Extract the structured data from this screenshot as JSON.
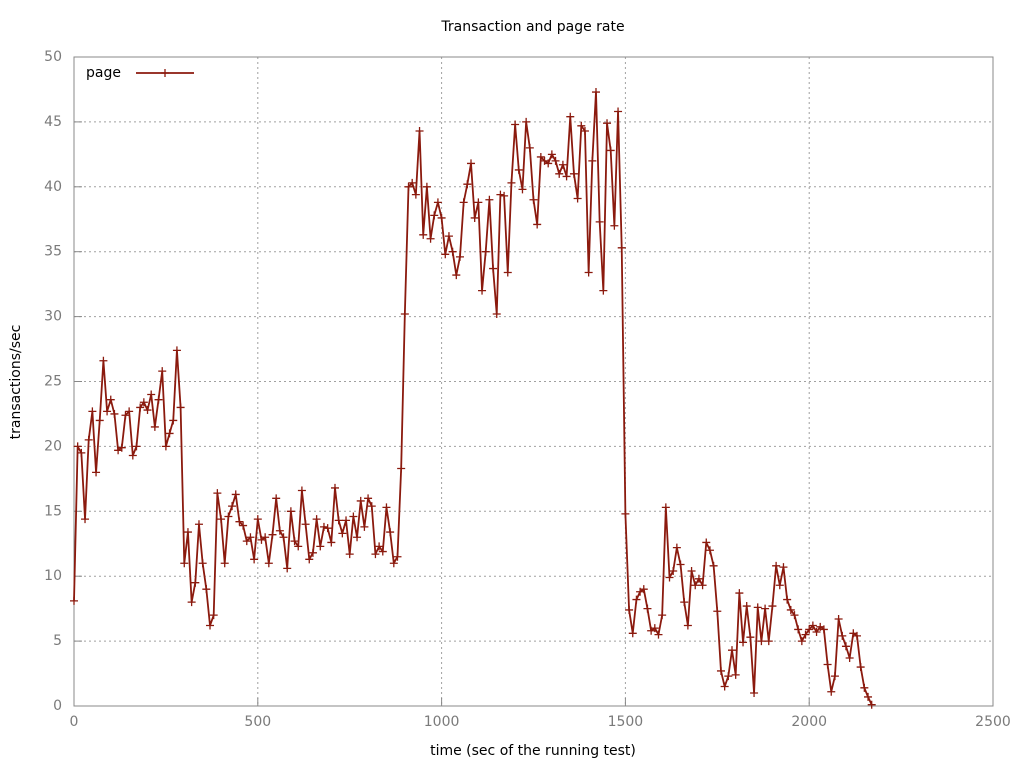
{
  "chart_data": {
    "type": "line",
    "title": "Transaction and page rate",
    "x_label": "time (sec of the running test)",
    "y_label": "transactions/sec",
    "x": [
      0,
      10,
      20,
      30,
      40,
      50,
      60,
      70,
      80,
      90,
      100,
      110,
      120,
      130,
      140,
      150,
      160,
      170,
      180,
      190,
      200,
      210,
      220,
      230,
      240,
      250,
      260,
      270,
      280,
      290,
      300,
      310,
      320,
      330,
      340,
      350,
      360,
      370,
      380,
      390,
      400,
      410,
      420,
      430,
      440,
      450,
      460,
      470,
      480,
      490,
      500,
      510,
      520,
      530,
      540,
      550,
      560,
      570,
      580,
      590,
      600,
      610,
      620,
      630,
      640,
      650,
      660,
      670,
      680,
      690,
      700,
      710,
      720,
      730,
      740,
      750,
      760,
      770,
      780,
      790,
      800,
      810,
      820,
      830,
      840,
      850,
      860,
      870,
      880,
      890,
      900,
      910,
      920,
      930,
      940,
      950,
      960,
      970,
      980,
      990,
      1000,
      1010,
      1020,
      1030,
      1040,
      1050,
      1060,
      1070,
      1080,
      1090,
      1100,
      1110,
      1120,
      1130,
      1140,
      1150,
      1160,
      1170,
      1180,
      1190,
      1200,
      1210,
      1220,
      1230,
      1240,
      1250,
      1260,
      1270,
      1280,
      1290,
      1300,
      1310,
      1320,
      1330,
      1340,
      1350,
      1360,
      1370,
      1380,
      1390,
      1400,
      1410,
      1420,
      1430,
      1440,
      1450,
      1460,
      1470,
      1480,
      1490,
      1500,
      1510,
      1520,
      1530,
      1540,
      1550,
      1560,
      1570,
      1580,
      1590,
      1600,
      1610,
      1620,
      1630,
      1640,
      1650,
      1660,
      1670,
      1680,
      1690,
      1700,
      1710,
      1720,
      1730,
      1740,
      1750,
      1760,
      1770,
      1780,
      1790,
      1800,
      1810,
      1820,
      1830,
      1840,
      1850,
      1860,
      1870,
      1880,
      1890,
      1900,
      1910,
      1920,
      1930,
      1940,
      1950,
      1960,
      1970,
      1980,
      1990,
      2000,
      2010,
      2020,
      2030,
      2040,
      2050,
      2060,
      2070,
      2080,
      2090,
      2100,
      2110,
      2120,
      2130,
      2140,
      2150,
      2160,
      2170
    ],
    "series": [
      {
        "name": "page",
        "color": "#8b1a0e",
        "values": [
          8.1,
          20,
          19.5,
          14.4,
          20.5,
          22.7,
          18,
          22,
          26.6,
          22.7,
          23.6,
          22.5,
          19.7,
          19.9,
          22.4,
          22.7,
          19.3,
          20,
          23,
          23.4,
          22.8,
          24,
          21.5,
          23.6,
          25.8,
          20,
          21,
          22,
          27.4,
          23,
          11,
          13.4,
          8,
          9.5,
          14,
          11,
          9,
          6.2,
          7,
          16.4,
          14.4,
          11,
          14.6,
          15.4,
          16.3,
          14.2,
          13.9,
          12.7,
          13,
          11.3,
          14.4,
          12.8,
          13,
          11,
          13.2,
          16,
          13.5,
          13,
          10.6,
          15,
          12.7,
          12.3,
          16.6,
          14,
          11.3,
          11.8,
          14.4,
          12.3,
          13.8,
          13.7,
          12.6,
          16.8,
          14.3,
          13.3,
          14.3,
          11.7,
          14.6,
          13,
          15.8,
          13.8,
          16,
          15.4,
          11.7,
          12.3,
          11.9,
          15.3,
          13.4,
          11,
          11.5,
          18.3,
          30.2,
          40,
          40.3,
          39.4,
          44.3,
          36.3,
          40,
          36,
          37.8,
          38.8,
          37.6,
          34.8,
          36.2,
          35,
          33.2,
          34.6,
          38.8,
          40.2,
          41.8,
          37.6,
          38.8,
          32,
          35,
          39,
          33.7,
          30.2,
          39.4,
          39.3,
          33.4,
          40.3,
          44.8,
          41.3,
          39.8,
          45,
          43,
          39,
          37.1,
          42.3,
          42,
          41.8,
          42.5,
          42,
          41,
          41.7,
          40.8,
          45.4,
          41,
          39.1,
          44.7,
          44.3,
          33.4,
          42,
          47.3,
          37.3,
          32,
          44.9,
          42.8,
          37,
          45.8,
          35.3,
          14.8,
          7.4,
          5.6,
          8.2,
          8.8,
          9,
          7.5,
          5.8,
          6,
          5.5,
          7,
          15.3,
          9.9,
          10.4,
          12.2,
          10.9,
          8,
          6.2,
          10.4,
          9.3,
          9.8,
          9.3,
          12.6,
          12,
          10.8,
          7.3,
          2.7,
          1.5,
          2.3,
          4.3,
          2.4,
          8.7,
          4.9,
          7.7,
          5.3,
          1,
          7.6,
          5,
          7.5,
          5,
          7.7,
          10.8,
          9.3,
          10.7,
          8.2,
          7.4,
          7,
          5.9,
          5,
          5.5,
          5.9,
          6.2,
          5.7,
          6.1,
          5.9,
          3.2,
          1.1,
          2.3,
          6.7,
          5.4,
          4.6,
          3.7,
          5.6,
          5.4,
          3,
          1.4,
          0.7,
          0.1
        ]
      }
    ],
    "xlim": [
      0,
      2500
    ],
    "xticks": [
      0,
      500,
      1000,
      1500,
      2000,
      2500
    ],
    "ylim": [
      0,
      50
    ],
    "yticks": [
      0,
      5,
      10,
      15,
      20,
      25,
      30,
      35,
      40,
      45,
      50
    ],
    "grid": true,
    "legend": "upper left"
  }
}
